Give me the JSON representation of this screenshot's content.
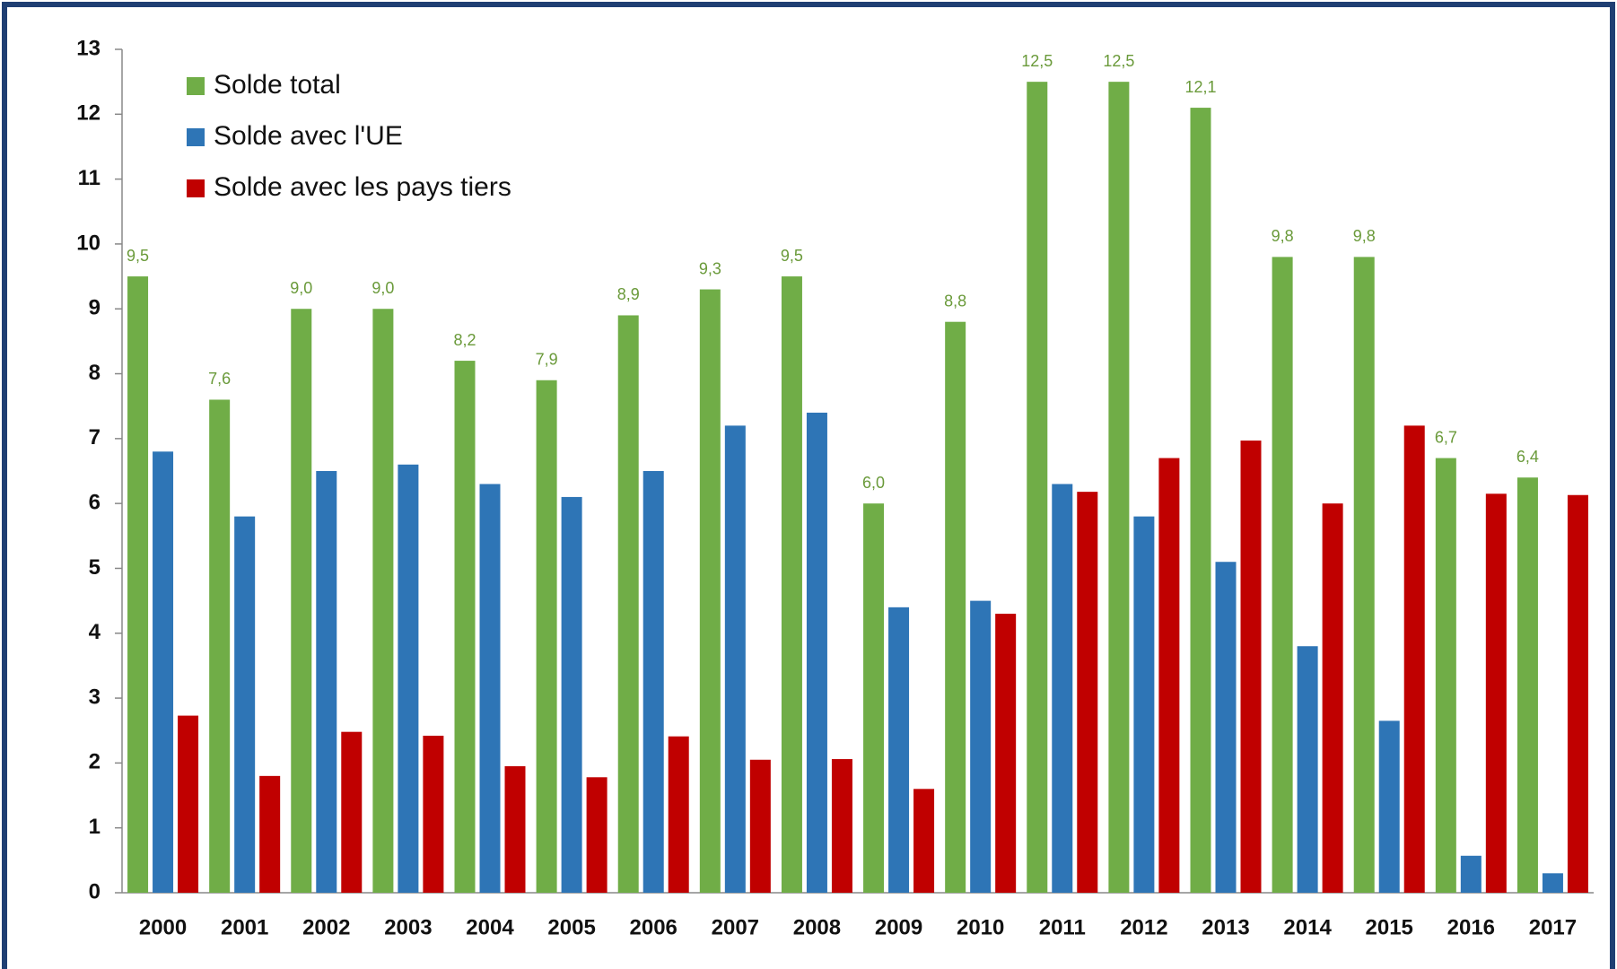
{
  "chart_data": {
    "type": "bar",
    "categories": [
      "2000",
      "2001",
      "2002",
      "2003",
      "2004",
      "2005",
      "2006",
      "2007",
      "2008",
      "2009",
      "2010",
      "2011",
      "2012",
      "2013",
      "2014",
      "2015",
      "2016",
      "2017"
    ],
    "series": [
      {
        "name": "Solde total",
        "color": "#70ad47",
        "values": [
          9.5,
          7.6,
          9.0,
          9.0,
          8.2,
          7.9,
          8.9,
          9.3,
          9.5,
          6.0,
          8.8,
          12.5,
          12.5,
          12.1,
          9.8,
          9.8,
          6.7,
          6.4
        ],
        "value_labels": [
          "9,5",
          "7,6",
          "9,0",
          "9,0",
          "8,2",
          "7,9",
          "8,9",
          "9,3",
          "9,5",
          "6,0",
          "8,8",
          "12,5",
          "12,5",
          "12,1",
          "9,8",
          "9,8",
          "6,7",
          "6,4"
        ]
      },
      {
        "name": "Solde avec l'UE",
        "color": "#2e75b6",
        "values": [
          6.8,
          5.8,
          6.5,
          6.6,
          6.3,
          6.1,
          6.5,
          7.2,
          7.4,
          4.4,
          4.5,
          6.3,
          5.8,
          5.1,
          3.8,
          2.65,
          0.57,
          0.3
        ]
      },
      {
        "name": "Solde avec les pays tiers",
        "color": "#c00000",
        "values": [
          2.73,
          1.8,
          2.48,
          2.42,
          1.95,
          1.78,
          2.41,
          2.05,
          2.06,
          1.6,
          4.3,
          6.18,
          6.7,
          6.97,
          6.0,
          7.2,
          6.15,
          6.13
        ]
      }
    ],
    "ylim": [
      0,
      13
    ],
    "yticks": [
      0,
      1,
      2,
      3,
      4,
      5,
      6,
      7,
      8,
      9,
      10,
      11,
      12,
      13
    ],
    "legend": "upper left"
  }
}
